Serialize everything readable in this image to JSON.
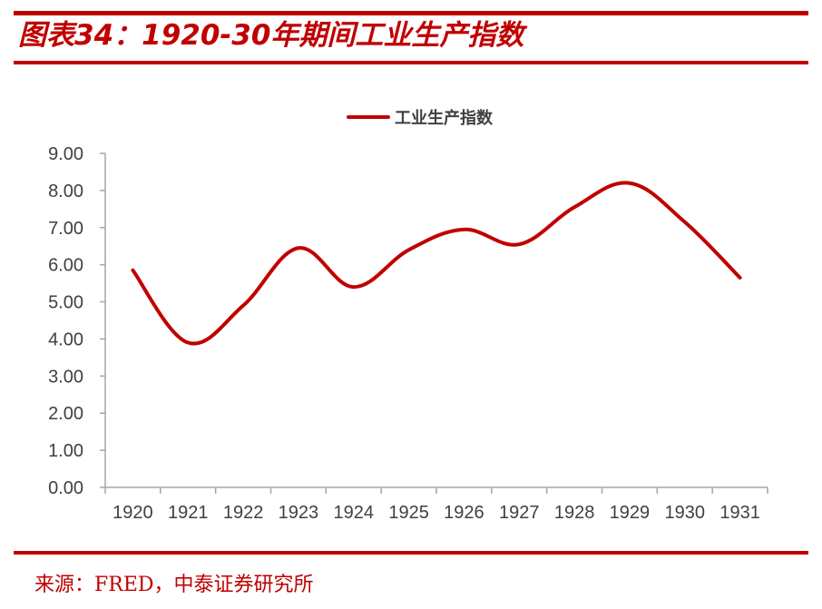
{
  "header": {
    "title": "图表34：1920-30年期间工业生产指数"
  },
  "footer": {
    "source": "来源：FRED，中泰证券研究所"
  },
  "colors": {
    "accent": "#c00000",
    "axis": "#a6a6a6",
    "text": "#404040"
  },
  "chart_data": {
    "type": "line",
    "categories": [
      "1920",
      "1921",
      "1922",
      "1923",
      "1924",
      "1925",
      "1926",
      "1927",
      "1928",
      "1929",
      "1930",
      "1931"
    ],
    "series": [
      {
        "name": "工业生产指数",
        "color": "#c00000",
        "values": [
          5.85,
          3.9,
          4.9,
          6.45,
          5.4,
          6.4,
          6.95,
          6.55,
          7.55,
          8.2,
          7.15,
          5.65
        ]
      }
    ],
    "yticks": [
      "0.00",
      "1.00",
      "2.00",
      "3.00",
      "4.00",
      "5.00",
      "6.00",
      "7.00",
      "8.00",
      "9.00"
    ],
    "ylim": [
      0,
      9
    ],
    "smooth": true,
    "grid": false,
    "legend_position": "top-center"
  }
}
